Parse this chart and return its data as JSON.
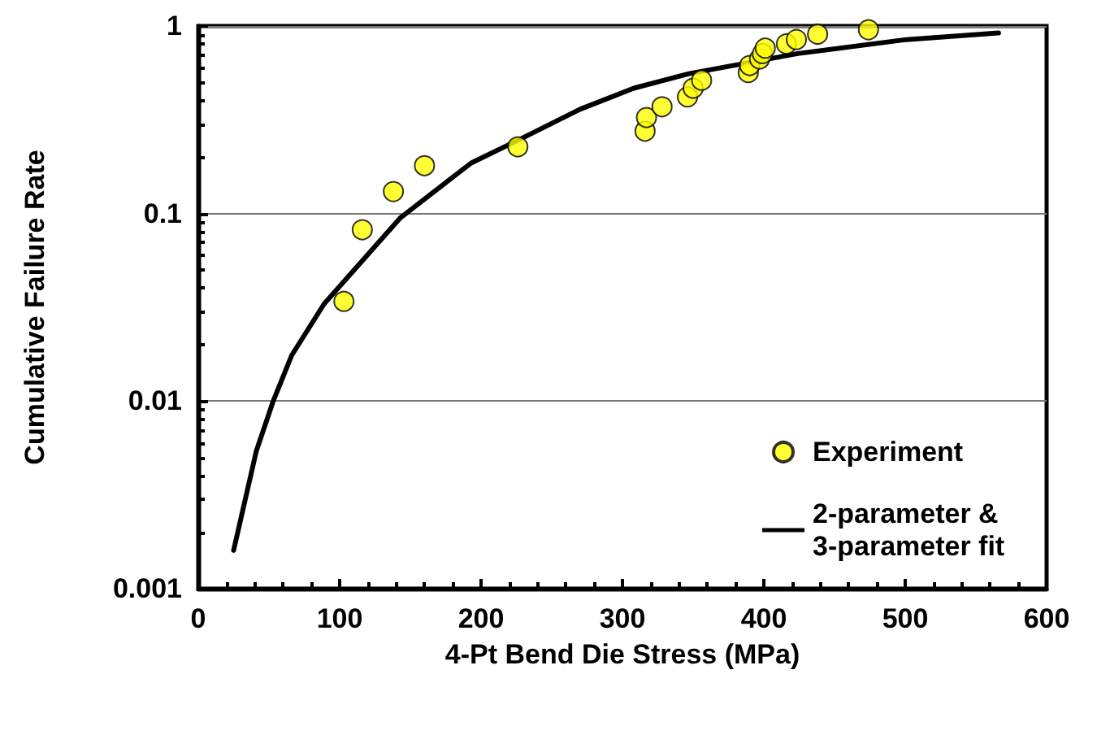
{
  "chart_data": {
    "type": "scatter",
    "xlabel": "4-Pt Bend Die Stress (MPa)",
    "ylabel": "Cumulative Failure Rate",
    "xlim": [
      0,
      600
    ],
    "xticks": [
      0,
      100,
      200,
      300,
      400,
      500,
      600
    ],
    "ylim": [
      0.001,
      1
    ],
    "yticks": [
      0.001,
      0.01,
      0.1,
      1
    ],
    "log": "y",
    "grid": "y",
    "legend": "bottom right",
    "series": [
      {
        "name": "Experiment",
        "marker": "circle",
        "color": "#ffff00",
        "x": [
          103,
          116,
          138,
          160,
          226,
          316,
          317,
          328,
          346,
          350,
          356,
          389,
          390,
          397,
          399,
          401,
          416,
          423,
          438,
          474
        ],
        "values": [
          0.034,
          0.082,
          0.131,
          0.18,
          0.227,
          0.275,
          0.325,
          0.371,
          0.419,
          0.466,
          0.514,
          0.565,
          0.616,
          0.667,
          0.713,
          0.762,
          0.803,
          0.847,
          0.905,
          0.955
        ]
      },
      {
        "name": "2-parameter & 3-parameter fit",
        "type": "line",
        "marker": "none",
        "line_style": "solid",
        "color": "#000000",
        "x": [
          25,
          41,
          53,
          66,
          89,
          116,
          143,
          178,
          193,
          228,
          270,
          308,
          347,
          424,
          501,
          566
        ],
        "values": [
          0.0016,
          0.0054,
          0.01,
          0.0175,
          0.033,
          0.056,
          0.095,
          0.152,
          0.186,
          0.25,
          0.36,
          0.466,
          0.557,
          0.713,
          0.847,
          0.918
        ]
      }
    ]
  }
}
